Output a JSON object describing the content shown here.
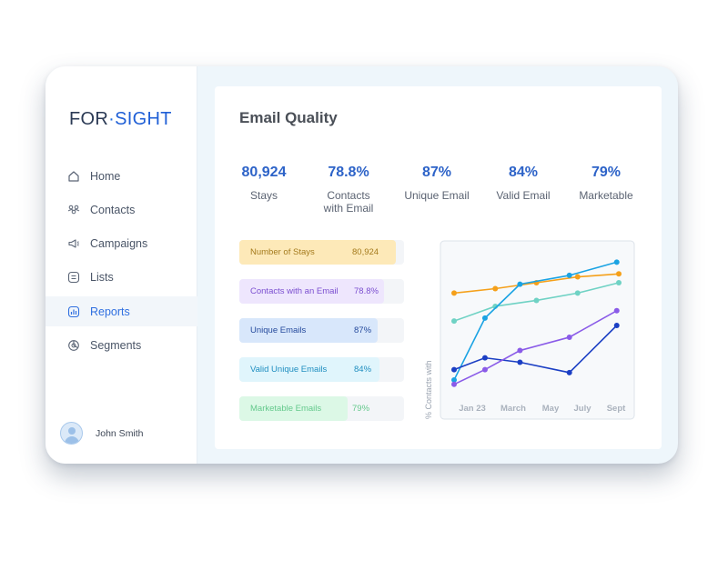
{
  "brand": {
    "part1": "FOR",
    "sep": "·",
    "part2": "SIGHT"
  },
  "nav": [
    {
      "label": "Home",
      "icon": "home-icon"
    },
    {
      "label": "Contacts",
      "icon": "contacts-icon"
    },
    {
      "label": "Campaigns",
      "icon": "megaphone-icon"
    },
    {
      "label": "Lists",
      "icon": "list-icon"
    },
    {
      "label": "Reports",
      "icon": "chart-icon",
      "active": true
    },
    {
      "label": "Segments",
      "icon": "segments-icon"
    }
  ],
  "user": {
    "name": "John Smith"
  },
  "main": {
    "title": "Email Quality",
    "stats": [
      {
        "value": "80,924",
        "label_1": "Stays",
        "label_2": ""
      },
      {
        "value": "78.8%",
        "label_1": "Contacts",
        "label_2": "with Email"
      },
      {
        "value": "87%",
        "label_1": "Unique Email",
        "label_2": ""
      },
      {
        "value": "84%",
        "label_1": "Valid Email",
        "label_2": ""
      },
      {
        "value": "79%",
        "label_1": "Marketable",
        "label_2": ""
      }
    ],
    "bars": [
      {
        "label": "Number of Stays",
        "value": "80,924",
        "fraction": 0.95,
        "fill": "#fde9b8",
        "color": "#a47a1c"
      },
      {
        "label": "Contacts with an Email",
        "value": "78.8%",
        "fraction": 0.88,
        "fill": "#eee6fd",
        "color": "#7b4fd0"
      },
      {
        "label": "Unique Emails",
        "value": "87%",
        "fraction": 0.84,
        "fill": "#d8e7fb",
        "color": "#254a9c"
      },
      {
        "label": "Valid Unique Emails",
        "value": "84%",
        "fraction": 0.85,
        "fill": "#e0f5fc",
        "color": "#1f8ec0"
      },
      {
        "label": "Marketable Emails",
        "value": "79%",
        "fraction": 0.66,
        "fill": "#dcf8e6",
        "color": "#64c98c"
      }
    ]
  },
  "chart_data": {
    "type": "line",
    "ylabel": "% Contacts with",
    "xlabel": "",
    "x": [
      "Jan 23",
      "March",
      "May",
      "July",
      "Sept"
    ],
    "series": [
      {
        "color": "#f5a01a",
        "values": [
          72,
          75,
          79,
          83,
          85
        ]
      },
      {
        "color": "#6fd2c4",
        "values": [
          53,
          63,
          67,
          72,
          79
        ]
      },
      {
        "color": "#1aa3e3",
        "values": [
          13,
          55,
          78,
          84,
          93
        ],
        "xs": [
          0,
          0.75,
          1.6,
          2.8,
          3.95
        ]
      },
      {
        "color": "#1b3fc4",
        "values": [
          20,
          28,
          25,
          18,
          50
        ],
        "xs": [
          0,
          0.75,
          1.6,
          2.8,
          3.95
        ]
      },
      {
        "color": "#8a5be8",
        "values": [
          10,
          20,
          33,
          42,
          60
        ],
        "xs": [
          0,
          0.75,
          1.6,
          2.8,
          3.95
        ]
      }
    ],
    "ylim": [
      0,
      100
    ],
    "grid": false
  }
}
